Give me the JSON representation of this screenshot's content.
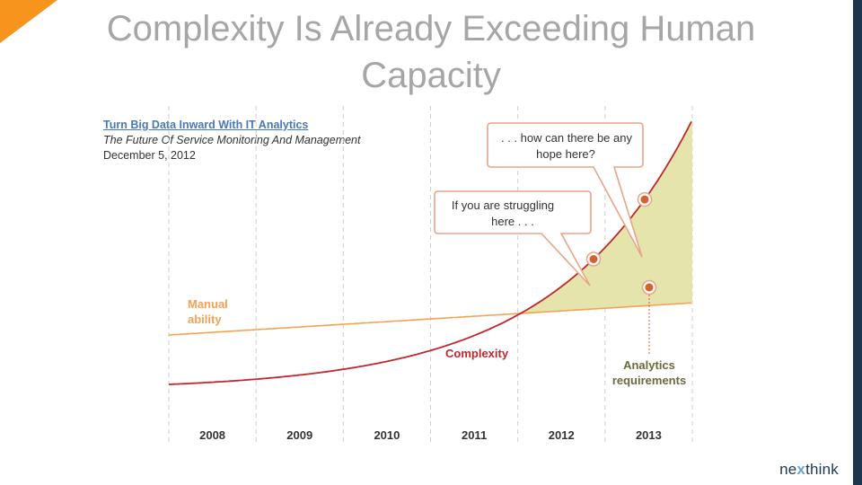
{
  "slide": {
    "title": "Complexity Is Already Exceeding Human Capacity",
    "accent_color": "#f7941d",
    "sidebar_color": "#1e3550"
  },
  "source": {
    "link_text": "Turn Big Data Inward With IT Analytics",
    "subtitle": "The Future Of Service Monitoring And Management",
    "date": "December 5, 2012"
  },
  "chart_data": {
    "type": "line",
    "categories": [
      "2008",
      "2009",
      "2010",
      "2011",
      "2012",
      "2013"
    ],
    "series": [
      {
        "name": "Manual ability",
        "color": "#f3a253"
      },
      {
        "name": "Complexity",
        "color": "#c0272d"
      }
    ],
    "gap_fill_color": "#e6e4ad",
    "annotations": {
      "struggling": "If you are struggling here . . .",
      "hope": ". . . how can there be any hope here?",
      "manual_label": "Manual ability",
      "complexity_label": "Complexity",
      "analytics_label": "Analytics requirements"
    }
  },
  "logo": {
    "prefix": "ne",
    "x": "x",
    "suffix": "think"
  }
}
